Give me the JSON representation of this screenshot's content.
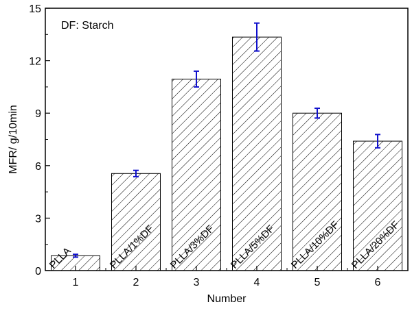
{
  "chart_data": {
    "type": "bar",
    "annotation": "DF: Starch",
    "xlabel": "Number",
    "ylabel": "MFR/ g/10min",
    "categories": [
      "1",
      "2",
      "3",
      "4",
      "5",
      "6"
    ],
    "bar_labels": [
      "PLLA",
      "PLLA/1%DF",
      "PLLA/3%DF",
      "PLLA/5%DF",
      "PLLA/10%DF",
      "PLLA/20%DF"
    ],
    "values": [
      0.85,
      5.55,
      10.95,
      13.35,
      9.0,
      7.4
    ],
    "errors": [
      0.08,
      0.18,
      0.45,
      0.8,
      0.28,
      0.38
    ],
    "ylim": [
      0,
      15
    ],
    "yticks": [
      0,
      3,
      6,
      9,
      12,
      15
    ],
    "grid": false,
    "bar_fill": "hatched",
    "bar_color": "#000000",
    "error_bar_color": "#1010cc"
  }
}
